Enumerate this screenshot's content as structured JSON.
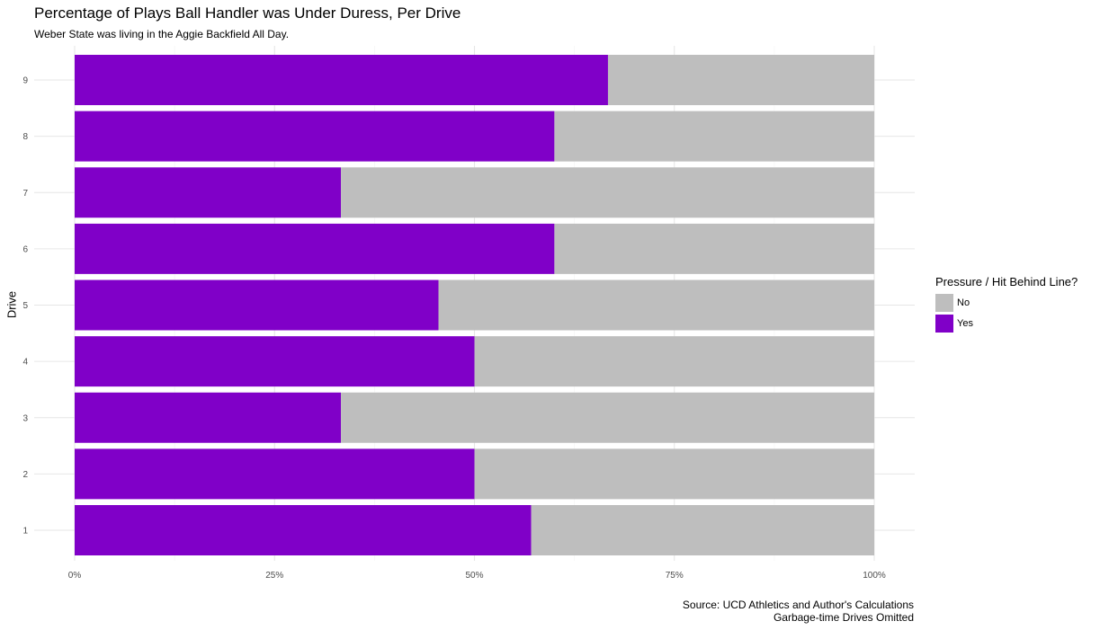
{
  "chart_data": {
    "type": "bar",
    "orientation": "horizontal",
    "stacked": "percent",
    "title": "Percentage of Plays Ball Handler was Under Duress, Per Drive",
    "subtitle": "Weber State was living in the Aggie Backfield All Day.",
    "xlabel": "",
    "ylabel": "Drive",
    "categories": [
      "1",
      "2",
      "3",
      "4",
      "5",
      "6",
      "7",
      "8",
      "9"
    ],
    "xlim": [
      0,
      1
    ],
    "x_ticks": [
      "0%",
      "25%",
      "50%",
      "75%",
      "100%"
    ],
    "grid": true,
    "legend": {
      "title": "Pressure / Hit Behind Line?",
      "position": "right",
      "entries": [
        "No",
        "Yes"
      ]
    },
    "series": [
      {
        "name": "Yes",
        "color": "#8000C8",
        "values": [
          0.571,
          0.5,
          0.333,
          0.5,
          0.455,
          0.6,
          0.333,
          0.6,
          0.667
        ]
      },
      {
        "name": "No",
        "color": "#BEBEBE",
        "values": [
          0.429,
          0.5,
          0.667,
          0.5,
          0.545,
          0.4,
          0.667,
          0.4,
          0.333
        ]
      }
    ],
    "caption": [
      "Source: UCD Athletics and Author's Calculations",
      "Garbage-time Drives Omitted"
    ]
  }
}
